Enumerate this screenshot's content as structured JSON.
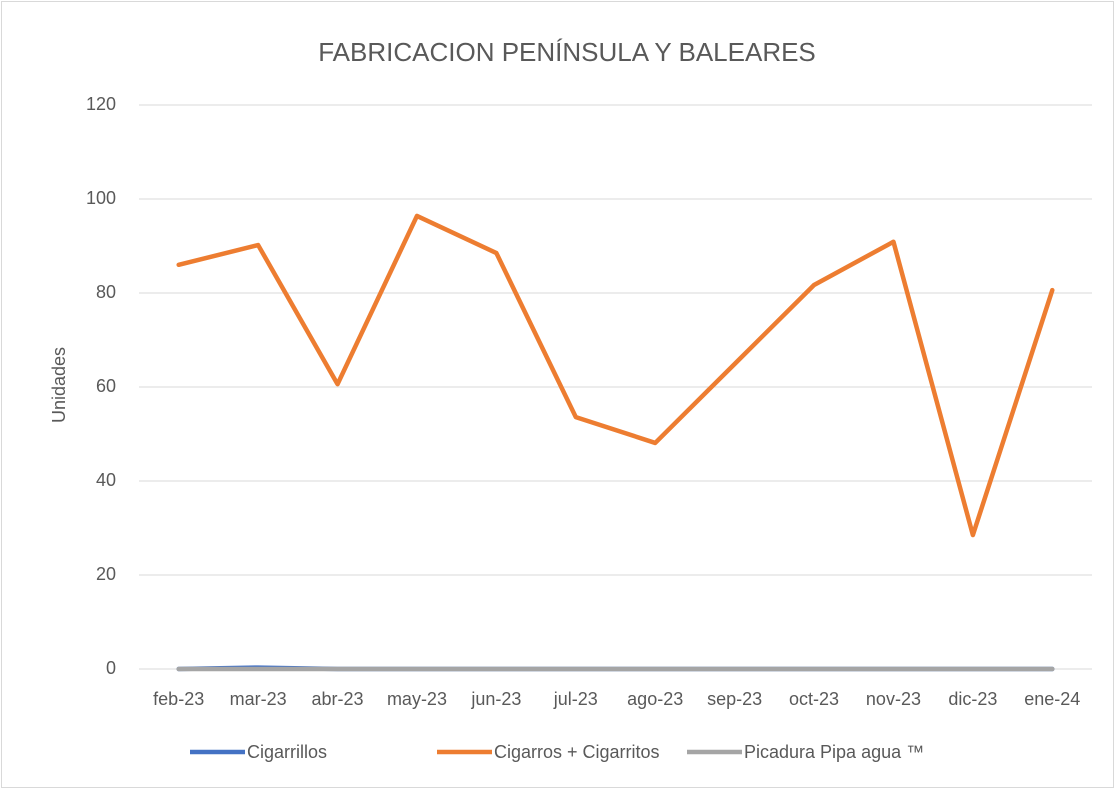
{
  "chart_data": {
    "type": "line",
    "title": "FABRICACION PENÍNSULA Y BALEARES",
    "y_label": "Unidades",
    "categories": [
      "feb-23",
      "mar-23",
      "abr-23",
      "may-23",
      "jun-23",
      "jul-23",
      "ago-23",
      "sep-23",
      "oct-23",
      "nov-23",
      "dic-23",
      "ene-24"
    ],
    "series": [
      {
        "name": "Cigarrillos",
        "color": "#4472c4",
        "values": [
          0,
          0.3,
          0,
          0,
          0,
          0,
          0,
          0,
          0,
          0,
          0,
          0
        ]
      },
      {
        "name": "Cigarros + Cigarritos",
        "color": "#ed7d31",
        "values": [
          86,
          90.2,
          60.6,
          96.4,
          88.5,
          53.6,
          48.1,
          64.9,
          81.7,
          90.9,
          28.5,
          80.6
        ]
      },
      {
        "name": "Picadura Pipa agua ™",
        "color": "#a5a5a5",
        "values": [
          0,
          0,
          0,
          0,
          0,
          0,
          0,
          0,
          0,
          0,
          0,
          0
        ]
      }
    ],
    "ylim": [
      0,
      120
    ],
    "yticks": [
      0,
      20,
      40,
      60,
      80,
      100,
      120
    ],
    "grid": true,
    "legend": "bottom"
  }
}
